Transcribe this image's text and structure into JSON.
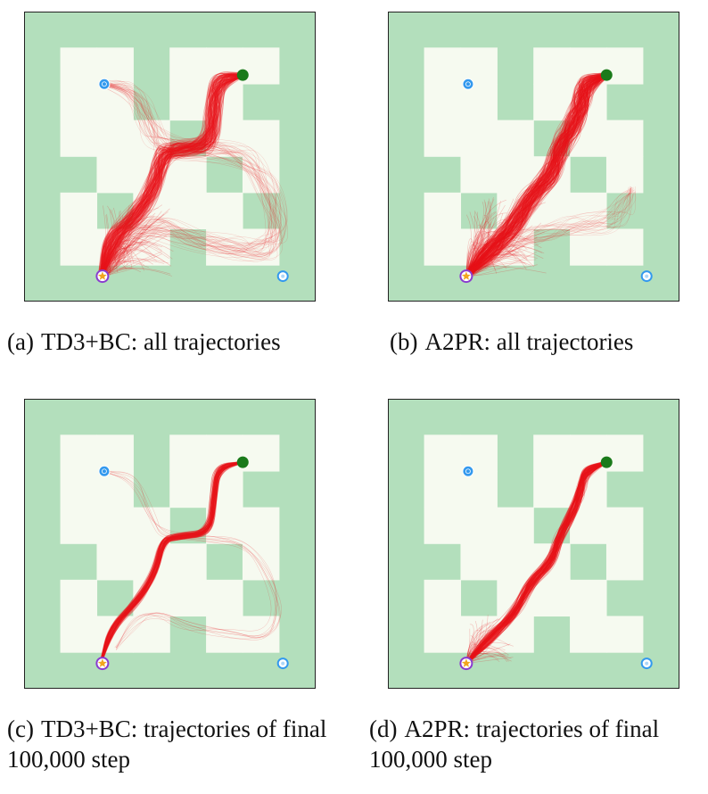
{
  "colors": {
    "wall": "#b3dfbc",
    "floor": "#f6faf0",
    "border": "#222222",
    "trajectory": "#e8141b",
    "goal": "#1a7a1a",
    "start_star": "#f2a61e",
    "start_ring": "#8a3ccf",
    "waypoint": "#3399ee"
  },
  "panels": [
    {
      "id": "a",
      "label": "(a)",
      "caption": "TD3+BC: all trajectories"
    },
    {
      "id": "b",
      "label": "(b)",
      "caption": "A2PR: all trajectories"
    },
    {
      "id": "c",
      "label": "(c)",
      "caption": "TD3+BC: trajectories of final 100,000 step"
    },
    {
      "id": "d",
      "label": "(d)",
      "caption": "A2PR: trajectories of final 100,000 step"
    }
  ]
}
